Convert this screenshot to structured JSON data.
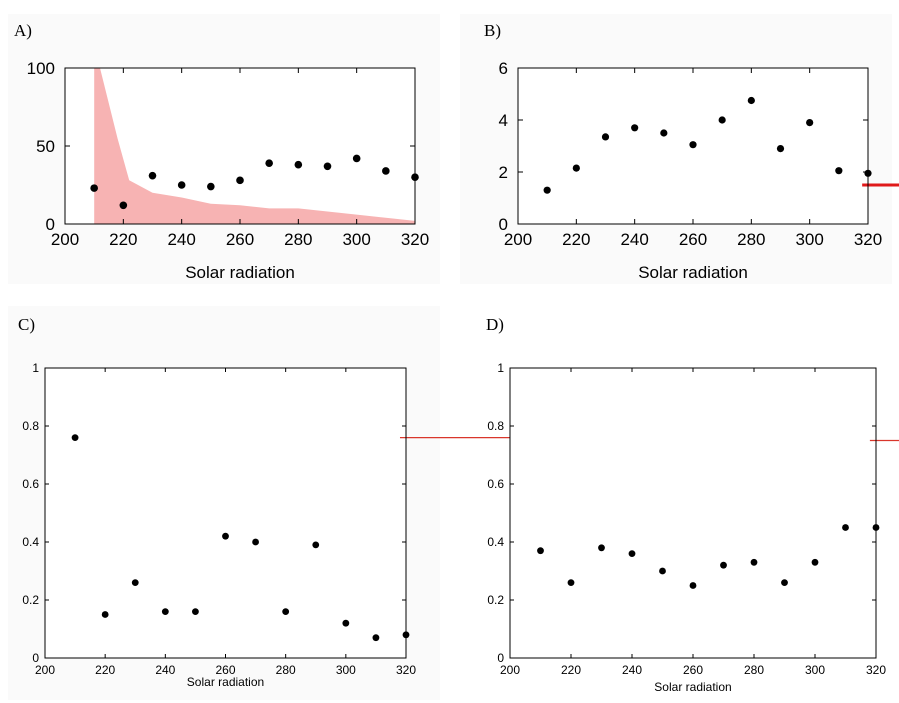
{
  "chart_data": [
    {
      "panel": "A)",
      "type": "scatter",
      "xlabel": "Solar radiation",
      "ylabel": "",
      "xlim": [
        200,
        320
      ],
      "ylim": [
        0,
        100
      ],
      "xticks": [
        "200",
        "220",
        "240",
        "260",
        "280",
        "300",
        "320"
      ],
      "yticks": [
        "0",
        "50",
        "100"
      ],
      "points": {
        "x": [
          210,
          220,
          230,
          240,
          250,
          260,
          270,
          280,
          290,
          300,
          310,
          320
        ],
        "y": [
          23,
          12,
          31,
          25,
          24,
          28,
          39,
          38,
          37,
          42,
          34,
          30
        ]
      },
      "band": {
        "color": "#f7b3b3",
        "x": [
          210,
          212,
          218,
          222,
          230,
          240,
          250,
          260,
          270,
          280,
          290,
          300,
          310,
          320
        ],
        "y": [
          100,
          100,
          55,
          28,
          20,
          17,
          13,
          12,
          10,
          10,
          8,
          6,
          4,
          2
        ]
      }
    },
    {
      "panel": "B)",
      "type": "scatter",
      "xlabel": "Solar radiation",
      "ylabel": "",
      "xlim": [
        200,
        320
      ],
      "ylim": [
        0,
        6
      ],
      "xticks": [
        "200",
        "220",
        "240",
        "260",
        "280",
        "300",
        "320"
      ],
      "yticks": [
        "0",
        "2",
        "4",
        "6"
      ],
      "points": {
        "x": [
          210,
          220,
          230,
          240,
          250,
          260,
          270,
          280,
          290,
          300,
          310,
          320
        ],
        "y": [
          1.3,
          2.15,
          3.35,
          3.7,
          3.5,
          3.05,
          4.0,
          4.75,
          2.9,
          3.9,
          2.05,
          1.95
        ]
      },
      "reference_line": {
        "y": 1.5,
        "color": "#e0191a"
      }
    },
    {
      "panel": "C)",
      "type": "scatter",
      "xlabel": "Solar radiation",
      "ylabel": "",
      "xlim": [
        200,
        320
      ],
      "ylim": [
        0,
        1
      ],
      "xticks": [
        "200",
        "220",
        "240",
        "260",
        "280",
        "300",
        "320"
      ],
      "yticks": [
        "0",
        "0.2",
        "0.4",
        "0.6",
        "0.8",
        "1"
      ],
      "points": {
        "x": [
          210,
          220,
          230,
          240,
          250,
          260,
          270,
          280,
          290,
          300,
          310,
          320
        ],
        "y": [
          0.76,
          0.15,
          0.26,
          0.16,
          0.16,
          0.42,
          0.4,
          0.16,
          0.39,
          0.12,
          0.07,
          0.08
        ]
      },
      "reference_line": {
        "y": 0.76,
        "color": "#d9362b"
      }
    },
    {
      "panel": "D)",
      "type": "scatter",
      "xlabel": "Solar radiation",
      "ylabel": "",
      "xlim": [
        200,
        320
      ],
      "ylim": [
        0,
        1
      ],
      "xticks": [
        "200",
        "220",
        "240",
        "260",
        "280",
        "300",
        "320"
      ],
      "yticks": [
        "0",
        "0.2",
        "0.4",
        "0.6",
        "0.8",
        "1"
      ],
      "points": {
        "x": [
          210,
          220,
          230,
          240,
          250,
          260,
          270,
          280,
          290,
          300,
          310,
          320
        ],
        "y": [
          0.37,
          0.26,
          0.38,
          0.36,
          0.3,
          0.25,
          0.32,
          0.33,
          0.26,
          0.33,
          0.45,
          0.45
        ]
      },
      "reference_line": {
        "y": 0.75,
        "color": "#d9362b"
      }
    }
  ]
}
